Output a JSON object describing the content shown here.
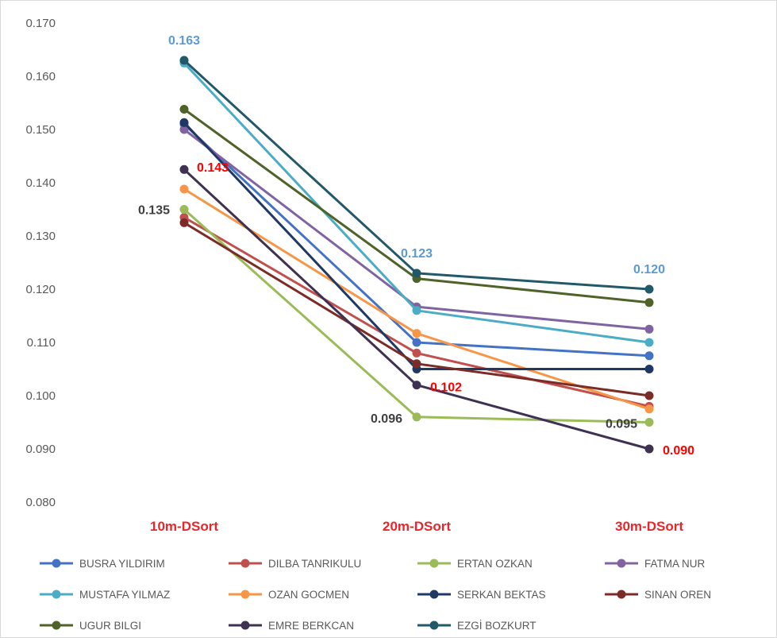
{
  "chart_data": {
    "type": "line",
    "categories": [
      "10m-DSort",
      "20m-DSort",
      "30m-DSort"
    ],
    "ylim": [
      0.08,
      0.17
    ],
    "y_ticks": [
      "0.080",
      "0.090",
      "0.100",
      "0.110",
      "0.120",
      "0.130",
      "0.140",
      "0.150",
      "0.160",
      "0.170"
    ],
    "grid": false,
    "legend_position": "bottom",
    "category_label_color": "#e8262b",
    "series": [
      {
        "name": "BUSRA YILDIRIM",
        "color": "#4472c4",
        "values": [
          0.151,
          0.11,
          0.1075
        ]
      },
      {
        "name": "DILBA TANRIKULU",
        "color": "#c0504d",
        "values": [
          0.1335,
          0.108,
          0.098
        ]
      },
      {
        "name": "ERTAN OZKAN",
        "color": "#9bbb59",
        "values": [
          0.135,
          0.096,
          0.095
        ]
      },
      {
        "name": "FATMA NUR",
        "color": "#8064a2",
        "values": [
          0.15,
          0.1167,
          0.1125
        ]
      },
      {
        "name": "MUSTAFA YILMAZ",
        "color": "#4bacc6",
        "values": [
          0.1625,
          0.116,
          0.11
        ]
      },
      {
        "name": "OZAN GOCMEN",
        "color": "#f79646",
        "values": [
          0.1388,
          0.1117,
          0.0975
        ]
      },
      {
        "name": "SERKAN BEKTAS",
        "color": "#1f3864",
        "values": [
          0.1513,
          0.105,
          0.105
        ]
      },
      {
        "name": "SINAN OREN",
        "color": "#7b2c26",
        "values": [
          0.1325,
          0.106,
          0.1
        ]
      },
      {
        "name": "UGUR BILGI",
        "color": "#4f6228",
        "values": [
          0.1538,
          0.122,
          0.1175
        ]
      },
      {
        "name": "EMRE BERKCAN",
        "color": "#3f3151",
        "values": [
          0.1425,
          0.102,
          0.09
        ]
      },
      {
        "name": "EZGİ BOZKURT",
        "color": "#215968",
        "values": [
          0.163,
          0.123,
          0.12
        ]
      }
    ],
    "data_labels": [
      {
        "text": "0.163",
        "color": "#5b9bd5",
        "category": 0,
        "value": 0.163
      },
      {
        "text": "0.143",
        "color": "#ff0000",
        "category": 0,
        "value": 0.143
      },
      {
        "text": "0.135",
        "color": "#404040",
        "category": 0,
        "value": 0.135
      },
      {
        "text": "0.123",
        "color": "#5b9bd5",
        "category": 1,
        "value": 0.123
      },
      {
        "text": "0.102",
        "color": "#ff0000",
        "category": 1,
        "value": 0.102
      },
      {
        "text": "0.096",
        "color": "#404040",
        "category": 1,
        "value": 0.096
      },
      {
        "text": "0.120",
        "color": "#5b9bd5",
        "category": 2,
        "value": 0.12
      },
      {
        "text": "0.095",
        "color": "#404040",
        "category": 2,
        "value": 0.095
      },
      {
        "text": "0.090",
        "color": "#ff0000",
        "category": 2,
        "value": 0.09
      }
    ]
  }
}
